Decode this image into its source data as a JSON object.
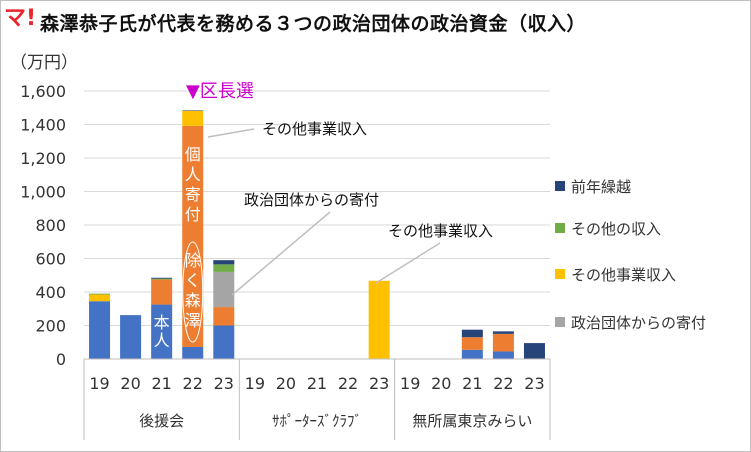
{
  "header": {
    "logo_text": "マ!",
    "title": "森澤恭子氏が代表を務める３つの政治団体の政治資金（収入）",
    "unit": "（万円）"
  },
  "colors": {
    "本人": "#4472c4",
    "個人寄付（除く森澤）": "#ed7d31",
    "政治団体からの寄付": "#a5a5a5",
    "その他事業収入": "#ffc000",
    "その他の収入": "#70ad47",
    "前年繰越": "#264478",
    "annotation_magenta": "#cc00cc"
  },
  "legend": [
    {
      "label": "前年繰越",
      "color": "#264478"
    },
    {
      "label": "その他の収入",
      "color": "#70ad47"
    },
    {
      "label": "その他事業収入",
      "color": "#ffc000"
    },
    {
      "label": "政治団体からの寄付",
      "color": "#a5a5a5"
    }
  ],
  "chart_data": {
    "type": "bar",
    "stacked": true,
    "ylim": [
      0,
      1600
    ],
    "yticks": [
      "0",
      "200",
      "400",
      "600",
      "800",
      "1,000",
      "1,200",
      "1,400",
      "1,600"
    ],
    "grid": true,
    "groups": [
      {
        "name": "後援会",
        "categories": [
          "19",
          "20",
          "21",
          "22",
          "23"
        ]
      },
      {
        "name": "ｻﾎﾟｰﾀｰｽﾞｸﾗﾌﾞ",
        "categories": [
          "19",
          "20",
          "21",
          "22",
          "23"
        ]
      },
      {
        "name": "無所属東京みらい",
        "categories": [
          "19",
          "20",
          "21",
          "22",
          "23"
        ]
      }
    ],
    "series": [
      {
        "name": "本人",
        "color": "#4472c4",
        "values": [
          345,
          262,
          325,
          72,
          200,
          0,
          0,
          0,
          0,
          0,
          0,
          0,
          55,
          45,
          0
        ]
      },
      {
        "name": "個人寄付（除く森澤）",
        "color": "#ed7d31",
        "values": [
          0,
          0,
          150,
          1320,
          110,
          0,
          0,
          0,
          0,
          0,
          0,
          0,
          75,
          105,
          0
        ]
      },
      {
        "name": "政治団体からの寄付",
        "color": "#a5a5a5",
        "values": [
          0,
          0,
          0,
          0,
          210,
          0,
          0,
          0,
          0,
          0,
          0,
          0,
          0,
          0,
          0
        ]
      },
      {
        "name": "その他事業収入",
        "color": "#ffc000",
        "values": [
          40,
          0,
          0,
          90,
          0,
          0,
          0,
          0,
          0,
          467,
          0,
          0,
          0,
          0,
          0
        ]
      },
      {
        "name": "その他の収入",
        "color": "#70ad47",
        "values": [
          5,
          0,
          5,
          0,
          45,
          0,
          0,
          0,
          0,
          0,
          0,
          0,
          0,
          0,
          0
        ]
      },
      {
        "name": "前年繰越",
        "color": "#264478",
        "values": [
          0,
          0,
          5,
          3,
          25,
          0,
          0,
          0,
          0,
          0,
          0,
          0,
          45,
          15,
          95
        ]
      }
    ],
    "annotations": {
      "election": "▼区長選",
      "other_business_1": "その他事業収入",
      "political_donation": "政治団体からの寄付",
      "other_business_2": "その他事業収入",
      "individual_donation_vertical": "個人寄付",
      "excluding_vertical": "除く森澤",
      "self_vertical": "本人"
    }
  }
}
